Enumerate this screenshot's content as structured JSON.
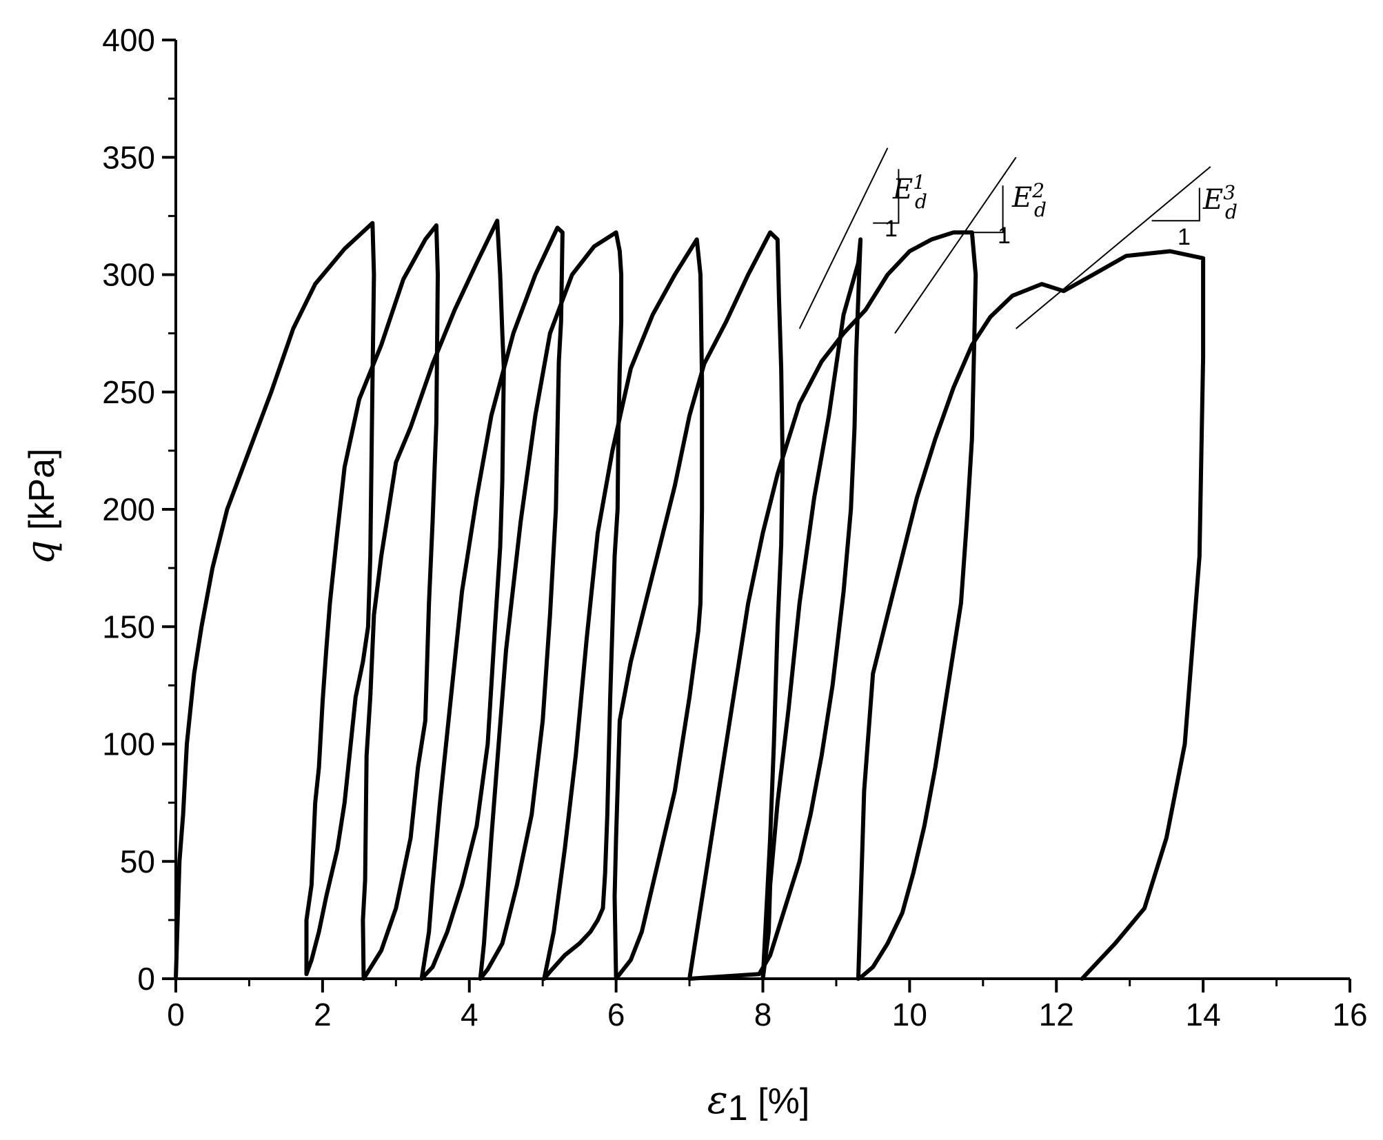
{
  "chart_data": {
    "type": "line",
    "title": "",
    "xlabel": {
      "symbol": "ε",
      "subscript": "1",
      "unit": "[%]"
    },
    "ylabel": {
      "symbol": "q",
      "unit": "[kPa]"
    },
    "xlim": [
      0,
      16
    ],
    "ylim": [
      0,
      400
    ],
    "x_ticks": [
      0,
      2,
      4,
      6,
      8,
      10,
      12,
      14,
      16
    ],
    "y_ticks": [
      0,
      50,
      100,
      150,
      200,
      250,
      300,
      350,
      400
    ],
    "grid": false,
    "legend": "none",
    "line_color": "#000000",
    "series": [
      {
        "x": [
          0.0,
          0.05,
          0.1,
          0.15,
          0.25,
          0.35,
          0.5,
          0.7,
          1.0,
          1.3,
          1.6,
          1.9,
          2.3,
          2.68,
          2.7,
          2.68,
          2.65,
          2.62,
          2.55,
          2.45,
          2.3,
          2.2,
          2.05,
          1.95,
          1.85,
          1.78
        ],
        "y": [
          0,
          50,
          70,
          100,
          130,
          150,
          175,
          200,
          225,
          250,
          277,
          296,
          311,
          322,
          300,
          255,
          180,
          150,
          135,
          120,
          75,
          55,
          35,
          20,
          8,
          2
        ]
      },
      {
        "x": [
          1.78,
          1.78,
          1.85,
          1.9,
          1.95,
          2.0,
          2.05,
          2.1,
          2.2,
          2.3,
          2.5,
          2.8,
          3.1,
          3.4,
          3.55,
          3.57,
          3.55,
          3.5,
          3.45,
          3.4,
          3.3,
          3.2,
          3.0,
          2.8,
          2.6,
          2.56
        ],
        "y": [
          2,
          25,
          40,
          75,
          90,
          118,
          140,
          160,
          190,
          218,
          247,
          270,
          298,
          315,
          321,
          300,
          237,
          195,
          160,
          110,
          90,
          60,
          30,
          12,
          2,
          0
        ]
      },
      {
        "x": [
          2.56,
          2.55,
          2.58,
          2.6,
          2.65,
          2.7,
          2.8,
          2.9,
          3.0,
          3.2,
          3.5,
          3.8,
          4.1,
          4.38,
          4.42,
          4.45,
          4.47,
          4.45,
          4.42,
          4.35,
          4.25,
          4.1,
          3.9,
          3.7,
          3.5,
          3.35
        ],
        "y": [
          0,
          25,
          42,
          95,
          120,
          155,
          180,
          200,
          220,
          235,
          262,
          285,
          305,
          323,
          300,
          275,
          260,
          212,
          184,
          150,
          100,
          65,
          40,
          20,
          5,
          0
        ]
      },
      {
        "x": [
          3.35,
          3.45,
          3.5,
          3.6,
          3.75,
          3.9,
          4.1,
          4.3,
          4.6,
          4.9,
          5.2,
          5.27,
          5.25,
          5.22,
          5.18,
          5.1,
          5.0,
          4.85,
          4.65,
          4.45,
          4.25,
          4.15
        ],
        "y": [
          0,
          20,
          40,
          75,
          120,
          165,
          205,
          240,
          275,
          300,
          320,
          318,
          280,
          263,
          200,
          155,
          110,
          70,
          40,
          15,
          4,
          0
        ]
      },
      {
        "x": [
          4.15,
          4.2,
          4.3,
          4.4,
          4.5,
          4.7,
          4.9,
          5.1,
          5.4,
          5.7,
          6.0,
          6.05,
          6.07,
          6.07,
          6.05,
          6.03,
          6.02,
          5.98,
          5.95,
          5.92,
          5.9,
          5.88,
          5.85,
          5.82,
          5.75,
          5.65,
          5.5,
          5.3,
          5.1,
          5.02
        ],
        "y": [
          0,
          15,
          60,
          100,
          140,
          195,
          240,
          275,
          300,
          312,
          318,
          310,
          300,
          280,
          260,
          230,
          200,
          180,
          150,
          120,
          95,
          70,
          45,
          30,
          25,
          20,
          15,
          10,
          3,
          0
        ]
      },
      {
        "x": [
          5.02,
          5.15,
          5.3,
          5.45,
          5.6,
          5.75,
          5.95,
          6.2,
          6.5,
          6.8,
          7.1,
          7.15,
          7.17,
          7.17,
          7.15,
          7.12,
          7.0,
          6.9,
          6.8,
          6.65,
          6.5,
          6.35,
          6.2,
          6.05,
          6.0
        ],
        "y": [
          0,
          20,
          55,
          95,
          145,
          190,
          225,
          260,
          283,
          300,
          315,
          300,
          255,
          200,
          160,
          148,
          120,
          100,
          80,
          60,
          40,
          20,
          8,
          2,
          0
        ]
      },
      {
        "x": [
          6.0,
          5.98,
          6.0,
          6.05,
          6.2,
          6.4,
          6.6,
          6.8,
          7.0,
          7.2,
          7.5,
          7.8,
          8.1,
          8.2,
          8.22,
          8.25,
          8.27,
          8.25,
          8.2,
          8.15,
          8.1,
          8.05,
          8.0
        ],
        "y": [
          0,
          35,
          60,
          110,
          135,
          160,
          185,
          210,
          240,
          262,
          280,
          300,
          318,
          315,
          290,
          260,
          220,
          185,
          150,
          100,
          60,
          30,
          0
        ]
      },
      {
        "x": [
          8.0,
          8.08,
          8.1,
          8.2,
          8.35,
          8.5,
          8.7,
          8.9,
          9.1,
          9.3,
          9.33,
          9.3,
          9.27,
          9.25,
          9.2,
          9.1,
          8.95,
          8.8,
          8.65,
          8.5,
          8.3,
          8.1,
          7.95,
          7.0
        ],
        "y": [
          0,
          20,
          40,
          75,
          115,
          160,
          205,
          240,
          283,
          305,
          315,
          290,
          265,
          235,
          200,
          165,
          125,
          95,
          70,
          50,
          30,
          10,
          2,
          0
        ]
      },
      {
        "x": [
          7.0,
          7.2,
          7.4,
          7.6,
          7.8,
          8.0,
          8.2,
          8.5,
          8.8,
          9.1,
          9.4,
          9.7,
          10.0,
          10.3,
          10.6,
          10.85,
          10.9,
          10.88,
          10.85,
          10.78,
          10.7,
          10.5,
          10.35,
          10.2,
          10.05,
          9.9,
          9.7,
          9.5,
          9.35,
          9.3
        ],
        "y": [
          0,
          40,
          80,
          120,
          160,
          190,
          215,
          245,
          263,
          275,
          285,
          300,
          310,
          315,
          318,
          318,
          300,
          270,
          230,
          195,
          160,
          120,
          90,
          65,
          45,
          28,
          15,
          5,
          1,
          0
        ]
      },
      {
        "x": [
          9.3,
          9.38,
          9.5,
          9.7,
          9.9,
          10.1,
          10.35,
          10.6,
          10.85,
          11.1,
          11.4,
          11.8,
          12.1,
          12.5,
          12.95,
          13.55,
          14.0,
          14.0,
          13.95,
          13.85,
          13.75,
          13.5,
          13.2,
          12.8,
          12.35
        ],
        "y": [
          0,
          80,
          130,
          155,
          180,
          205,
          230,
          252,
          270,
          282,
          291,
          296,
          293,
          300,
          308,
          310,
          307,
          265,
          180,
          140,
          100,
          60,
          30,
          15,
          0
        ]
      }
    ],
    "annotations": [
      {
        "symbol": "E",
        "sub": "d",
        "sup": "1",
        "slope_label": "1"
      },
      {
        "symbol": "E",
        "sub": "d",
        "sup": "2",
        "slope_label": "1"
      },
      {
        "symbol": "E",
        "sub": "d",
        "sup": "3",
        "slope_label": "1"
      }
    ]
  }
}
